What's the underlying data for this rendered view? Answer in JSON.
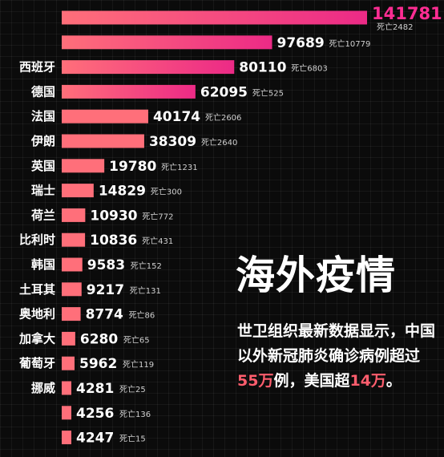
{
  "chart_data": {
    "type": "bar",
    "orientation": "horizontal",
    "title": "海外疫情",
    "categories": [
      "",
      "",
      "西班牙",
      "德国",
      "法国",
      "伊朗",
      "英国",
      "瑞士",
      "荷兰",
      "比利时",
      "韩国",
      "土耳其",
      "奥地利",
      "加拿大",
      "葡萄牙",
      "挪威",
      "",
      ""
    ],
    "values": [
      141781,
      97689,
      80110,
      62095,
      40174,
      38309,
      19780,
      14829,
      10930,
      10836,
      9583,
      9217,
      8774,
      6280,
      5962,
      4281,
      4256,
      4247
    ],
    "deaths": [
      "死亡2482",
      "死亡10779",
      "死亡6803",
      "死亡525",
      "死亡2606",
      "死亡2640",
      "死亡1231",
      "死亡300",
      "死亡772",
      "死亡431",
      "死亡152",
      "死亡131",
      "死亡86",
      "死亡65",
      "死亡119",
      "死亡25",
      "死亡136",
      "死亡15"
    ],
    "bar_colors": {
      "low": "#ff6f7a",
      "high": "#ec2a86",
      "accent": "#ff2d93"
    },
    "note_parts": [
      "世卫组织最新数据显示，中国以外新冠肺炎确诊病例超过",
      "55万",
      "例，美国超",
      "14万",
      "。"
    ]
  }
}
